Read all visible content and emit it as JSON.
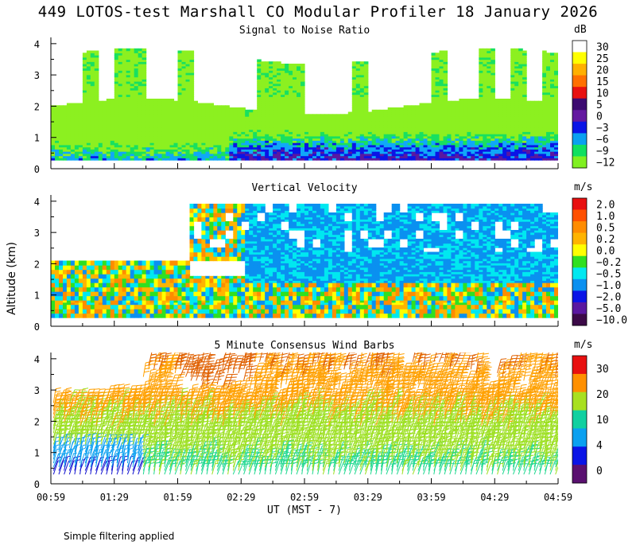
{
  "figure_title": "449 LOTOS-test Marshall CO Modular Profiler 18 January 2026",
  "footnote": "Simple filtering applied",
  "shared_ylabel": "Altitude (km)",
  "xlabel": "UT  (MST - 7)",
  "chart_data": [
    {
      "type": "heatmap",
      "title": "Signal to Noise Ratio",
      "unit": "dB",
      "x_ticks": [
        "00:59",
        "01:29",
        "01:59",
        "02:29",
        "02:59",
        "03:29",
        "03:59",
        "04:29",
        "04:59"
      ],
      "x_range_hours": [
        0.983,
        4.983
      ],
      "y_ticks": [
        "0",
        "1",
        "2",
        "3",
        "4"
      ],
      "ylim": [
        0,
        4.2
      ],
      "colorbar_labels": [
        "30",
        "25",
        "20",
        "15",
        "10",
        "5",
        "0",
        "−3",
        "−6",
        "−9",
        "−12"
      ],
      "colorbar_colors": [
        "#ffffff",
        "#ffff00",
        "#ffb000",
        "#ff7000",
        "#e81010",
        "#3c0a70",
        "#6418a0",
        "#0a14e6",
        "#0aa0f0",
        "#10e060",
        "#80f020"
      ],
      "levels_low_to_high": [
        -12,
        -9,
        -6,
        -3,
        0,
        5,
        10,
        15,
        20,
        25,
        30
      ],
      "level_colors_low_to_high": [
        "#8cf020",
        "#18e060",
        "#10a8f8",
        "#0a14e6",
        "#5a18a0",
        "#3c0a70",
        "#e81010",
        "#ff7000",
        "#ffb000",
        "#ffff00",
        "#ffffff"
      ],
      "data_range_km": [
        0.25,
        3.9
      ]
    },
    {
      "type": "heatmap",
      "title": "Vertical Velocity",
      "unit": "m/s",
      "x_ticks": [
        "00:59",
        "01:29",
        "01:59",
        "02:29",
        "02:59",
        "03:29",
        "03:59",
        "04:29",
        "04:59"
      ],
      "x_range_hours": [
        0.983,
        4.983
      ],
      "y_ticks": [
        "0",
        "1",
        "2",
        "3",
        "4"
      ],
      "ylim": [
        0,
        4.2
      ],
      "colorbar_labels": [
        "2.0",
        "1.0",
        "0.5",
        "0.2",
        "0.0",
        "−0.2",
        "−0.5",
        "−1.0",
        "−2.0",
        "−5.0",
        "−10.0"
      ],
      "colorbar_colors": [
        "#e81010",
        "#ff5000",
        "#ff8c00",
        "#ffb400",
        "#ffff00",
        "#30e020",
        "#00e8f0",
        "#0a90f0",
        "#0a14e6",
        "#5a18a0",
        "#3c0a48"
      ],
      "levels_low_to_high": [
        -10,
        -5,
        -2,
        -1,
        -0.5,
        -0.2,
        0,
        0.2,
        0.5,
        1,
        2
      ],
      "level_colors_low_to_high": [
        "#3c0a48",
        "#5a18a0",
        "#0a14e6",
        "#0a90f0",
        "#00e8f0",
        "#30e020",
        "#ffff00",
        "#ffb400",
        "#ff8c00",
        "#ff5000",
        "#e81010"
      ],
      "data_range_km": [
        0.25,
        3.9
      ]
    },
    {
      "type": "wind_barbs",
      "title": "5 Minute Consensus Wind Barbs",
      "unit": "m/s",
      "x_ticks": [
        "00:59",
        "01:29",
        "01:59",
        "02:29",
        "02:59",
        "03:29",
        "03:59",
        "04:29",
        "04:59"
      ],
      "x_range_hours": [
        0.983,
        4.983
      ],
      "y_ticks": [
        "0",
        "1",
        "2",
        "3",
        "4"
      ],
      "ylim": [
        0,
        4.2
      ],
      "colorbar_labels": [
        "30",
        "20",
        "10",
        "4",
        "0"
      ],
      "colorbar_colors": [
        "#e81010",
        "#ff9000",
        "#a8e020",
        "#10d0a0",
        "#0aa0f0",
        "#0a14e6",
        "#5a1070"
      ],
      "speed_levels_low_to_high": [
        0,
        2,
        4,
        7,
        10,
        15,
        20,
        30
      ],
      "speed_colors_low_to_high": [
        "#5a1070",
        "#1414d0",
        "#0aa0f0",
        "#20d890",
        "#9ce020",
        "#ffa000",
        "#e06000",
        "#e81010"
      ],
      "barb_direction": "from west / northwest",
      "typical_speed_ms": {
        "low_levels_early": 4,
        "low_levels_late": 9,
        "mid_levels": 13,
        "upper_levels": 20
      }
    }
  ]
}
